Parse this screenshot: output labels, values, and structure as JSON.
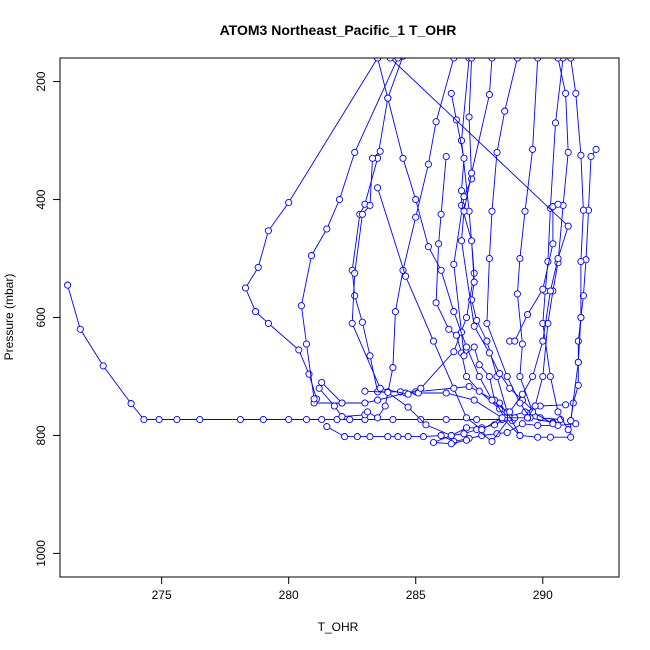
{
  "chart_data": {
    "type": "scatter",
    "title": "ATOM3 Northeast_Pacific_1 T_OHR",
    "xlabel": "T_OHR",
    "ylabel": "Pressure (mbar)",
    "xlim": [
      271,
      293
    ],
    "ylim": [
      1040,
      160
    ],
    "y_reversed": true,
    "x_ticks": [
      275,
      280,
      285,
      290
    ],
    "y_ticks": [
      200,
      400,
      600,
      800,
      1000
    ],
    "color": "#0000ff",
    "marker": "open-circle",
    "connected": true,
    "series": [
      {
        "values": [
          [
            271.3,
            545
          ],
          [
            271.8,
            620
          ],
          [
            272.7,
            682
          ],
          [
            273.8,
            746
          ],
          [
            274.3,
            773
          ],
          [
            274.9,
            773
          ],
          [
            275.6,
            773
          ],
          [
            276.5,
            773
          ],
          [
            278.1,
            773
          ],
          [
            279.0,
            773
          ],
          [
            280.0,
            773
          ],
          [
            280.7,
            773
          ],
          [
            281.3,
            773
          ],
          [
            281.9,
            773
          ],
          [
            282.4,
            773
          ],
          [
            283.0,
            773
          ],
          [
            284.1,
            773
          ],
          [
            285.2,
            773
          ],
          [
            286.2,
            773
          ],
          [
            287.4,
            773
          ],
          [
            288.4,
            773
          ]
        ]
      },
      {
        "values": [
          [
            288.8,
            775
          ],
          [
            288.3,
            745
          ],
          [
            287.1,
            717
          ],
          [
            285.0,
            726
          ],
          [
            284.4,
            726
          ],
          [
            283.9,
            726
          ],
          [
            283.5,
            726
          ],
          [
            283.2,
            665
          ],
          [
            282.9,
            608
          ],
          [
            282.6,
            563
          ],
          [
            282.5,
            520
          ],
          [
            282.8,
            425
          ],
          [
            283.0,
            408
          ],
          [
            283.5,
            330
          ],
          [
            283.9,
            228
          ],
          [
            284.5,
            157
          ]
        ]
      },
      {
        "values": [
          [
            281.1,
            738
          ],
          [
            280.8,
            696
          ],
          [
            280.4,
            655
          ],
          [
            279.2,
            610
          ],
          [
            278.7,
            590
          ],
          [
            278.3,
            550
          ],
          [
            278.8,
            515
          ],
          [
            279.2,
            453
          ],
          [
            280.0,
            405
          ],
          [
            283.5,
            160
          ]
        ]
      },
      {
        "values": [
          [
            281.0,
            745
          ],
          [
            282.1,
            745
          ],
          [
            283.0,
            745
          ],
          [
            283.5,
            740
          ],
          [
            284.6,
            728
          ],
          [
            285.1,
            728
          ],
          [
            286.2,
            728
          ],
          [
            287.3,
            740
          ],
          [
            288.4,
            770
          ],
          [
            289.1,
            800
          ],
          [
            289.8,
            803
          ],
          [
            290.3,
            803
          ],
          [
            291.1,
            803
          ],
          [
            291.1,
            775
          ],
          [
            291.2,
            745
          ],
          [
            291.4,
            715
          ],
          [
            291.4,
            676
          ],
          [
            291.4,
            640
          ],
          [
            291.5,
            600
          ],
          [
            291.6,
            563
          ],
          [
            291.7,
            502
          ],
          [
            291.8,
            418
          ],
          [
            291.9,
            327
          ],
          [
            292.1,
            315
          ]
        ]
      },
      {
        "values": [
          [
            281.0,
            738
          ],
          [
            280.7,
            645
          ],
          [
            280.5,
            580
          ],
          [
            280.9,
            495
          ],
          [
            281.5,
            450
          ],
          [
            282.0,
            400
          ],
          [
            282.6,
            320
          ],
          [
            284.3,
            160
          ]
        ]
      },
      {
        "values": [
          [
            282.1,
            745
          ],
          [
            281.3,
            710
          ],
          [
            281.2,
            720
          ],
          [
            281.8,
            750
          ],
          [
            282.1,
            768
          ],
          [
            283.0,
            765
          ],
          [
            283.1,
            760
          ],
          [
            283.5,
            770
          ],
          [
            283.8,
            750
          ],
          [
            284.1,
            685
          ],
          [
            284.2,
            590
          ],
          [
            284.5,
            520
          ],
          [
            285.0,
            430
          ],
          [
            285.5,
            340
          ],
          [
            285.8,
            268
          ],
          [
            286.5,
            160
          ]
        ]
      },
      {
        "values": [
          [
            281.5,
            785
          ],
          [
            282.2,
            802
          ],
          [
            282.7,
            802
          ],
          [
            283.2,
            802
          ],
          [
            283.9,
            802
          ],
          [
            284.3,
            802
          ],
          [
            284.7,
            802
          ],
          [
            285.3,
            802
          ],
          [
            286.0,
            800
          ],
          [
            286.5,
            810
          ],
          [
            287.1,
            805
          ],
          [
            287.6,
            800
          ],
          [
            288.2,
            797
          ],
          [
            288.6,
            795
          ],
          [
            289.2,
            780
          ],
          [
            289.8,
            783
          ],
          [
            290.6,
            783
          ],
          [
            291.3,
            780
          ]
        ]
      },
      {
        "values": [
          [
            283.6,
            318
          ],
          [
            283.3,
            330
          ],
          [
            283.2,
            410
          ],
          [
            282.9,
            425
          ],
          [
            282.6,
            525
          ],
          [
            282.5,
            610
          ],
          [
            283.6,
            720
          ],
          [
            284.7,
            730
          ],
          [
            285.2,
            720
          ],
          [
            286.5,
            658
          ],
          [
            287.0,
            600
          ],
          [
            287.3,
            525
          ],
          [
            287.1,
            420
          ],
          [
            286.8,
            300
          ],
          [
            287.1,
            160
          ]
        ]
      },
      {
        "values": [
          [
            283.0,
            725
          ],
          [
            283.9,
            727
          ],
          [
            284.7,
            752
          ],
          [
            285.4,
            782
          ],
          [
            286.4,
            800
          ],
          [
            287.0,
            787
          ],
          [
            287.6,
            787
          ],
          [
            288.1,
            782
          ],
          [
            288.7,
            768
          ],
          [
            289.3,
            760
          ],
          [
            289.9,
            750
          ],
          [
            290.9,
            748
          ]
        ]
      },
      {
        "values": [
          [
            286.2,
            327
          ],
          [
            286.0,
            425
          ],
          [
            285.9,
            475
          ],
          [
            285.8,
            575
          ],
          [
            286.3,
            620
          ],
          [
            286.6,
            630
          ],
          [
            286.8,
            660
          ],
          [
            287.0,
            700
          ],
          [
            287.5,
            725
          ],
          [
            288.3,
            755
          ],
          [
            288.7,
            770
          ],
          [
            288.0,
            810
          ],
          [
            287.4,
            790
          ],
          [
            286.9,
            797
          ],
          [
            286.4,
            800
          ],
          [
            285.7,
            812
          ],
          [
            286.4,
            814
          ],
          [
            287.0,
            808
          ]
        ]
      },
      {
        "values": [
          [
            286.4,
            220
          ],
          [
            286.6,
            265
          ],
          [
            286.9,
            330
          ],
          [
            286.8,
            385
          ],
          [
            286.8,
            410
          ],
          [
            287.2,
            470
          ],
          [
            287.3,
            540
          ],
          [
            287.2,
            570
          ],
          [
            287.4,
            605
          ],
          [
            287.8,
            640
          ],
          [
            288.2,
            700
          ],
          [
            288.6,
            760
          ],
          [
            289.1,
            800
          ]
        ]
      },
      {
        "values": [
          [
            287.2,
            160
          ],
          [
            287.1,
            260
          ],
          [
            287.2,
            365
          ],
          [
            286.9,
            395
          ],
          [
            286.5,
            510
          ],
          [
            286.8,
            625
          ],
          [
            286.9,
            665
          ],
          [
            287.3,
            650
          ],
          [
            287.5,
            680
          ],
          [
            287.9,
            700
          ],
          [
            288.1,
            740
          ],
          [
            288.5,
            770
          ]
        ]
      },
      {
        "values": [
          [
            288.0,
            160
          ],
          [
            287.9,
            222
          ],
          [
            287.2,
            355
          ],
          [
            286.9,
            420
          ],
          [
            286.8,
            470
          ],
          [
            287.3,
            615
          ],
          [
            287.9,
            660
          ],
          [
            288.3,
            695
          ],
          [
            288.7,
            720
          ],
          [
            289.2,
            740
          ],
          [
            289.9,
            770
          ],
          [
            290.7,
            773
          ]
        ]
      },
      {
        "values": [
          [
            289.0,
            160
          ],
          [
            288.5,
            250
          ],
          [
            288.2,
            320
          ],
          [
            288.0,
            420
          ],
          [
            287.9,
            500
          ],
          [
            287.8,
            610
          ],
          [
            288.6,
            700
          ],
          [
            289.1,
            745
          ],
          [
            289.5,
            770
          ],
          [
            290.4,
            778
          ]
        ]
      },
      {
        "values": [
          [
            289.8,
            160
          ],
          [
            289.6,
            315
          ],
          [
            289.3,
            420
          ],
          [
            289.1,
            500
          ],
          [
            289.0,
            560
          ],
          [
            289.2,
            645
          ],
          [
            289.1,
            700
          ],
          [
            289.6,
            760
          ],
          [
            290.4,
            780
          ]
        ]
      },
      {
        "values": [
          [
            290.8,
            160
          ],
          [
            290.5,
            270
          ],
          [
            290.3,
            415
          ],
          [
            290.2,
            505
          ],
          [
            290.1,
            555
          ],
          [
            290.0,
            610
          ],
          [
            290.3,
            700
          ],
          [
            290.6,
            760
          ],
          [
            291.0,
            790
          ]
        ]
      },
      {
        "values": [
          [
            291.1,
            160
          ],
          [
            291.3,
            220
          ],
          [
            291.5,
            325
          ],
          [
            291.6,
            418
          ],
          [
            291.5,
            505
          ],
          [
            291.5,
            600
          ],
          [
            291.4,
            676
          ],
          [
            291.1,
            775
          ]
        ]
      },
      {
        "values": [
          [
            290.6,
            160
          ],
          [
            290.9,
            220
          ],
          [
            291.0,
            320
          ],
          [
            290.8,
            410
          ],
          [
            290.6,
            507
          ],
          [
            290.4,
            555
          ],
          [
            290.2,
            610
          ],
          [
            290.0,
            700
          ],
          [
            289.7,
            750
          ],
          [
            289.4,
            770
          ]
        ]
      },
      {
        "values": [
          [
            283.5,
            160
          ],
          [
            283.9,
            228
          ],
          [
            284.5,
            330
          ],
          [
            285.0,
            400
          ],
          [
            285.5,
            480
          ],
          [
            286.0,
            520
          ],
          [
            286.5,
            590
          ],
          [
            287.0,
            650
          ],
          [
            287.5,
            700
          ],
          [
            288.0,
            740
          ],
          [
            288.9,
            770
          ]
        ]
      },
      {
        "values": [
          [
            284.0,
            160
          ],
          [
            291.0,
            445
          ],
          [
            290.6,
            500
          ],
          [
            290.3,
            555
          ],
          [
            290.0,
            640
          ],
          [
            289.6,
            700
          ],
          [
            289.2,
            730
          ],
          [
            288.7,
            760
          ]
        ]
      },
      {
        "values": [
          [
            283.5,
            380
          ],
          [
            284.6,
            530
          ],
          [
            285.7,
            640
          ],
          [
            286.5,
            720
          ],
          [
            287.0,
            770
          ],
          [
            287.6,
            790
          ],
          [
            288.4,
            770
          ],
          [
            289.4,
            770
          ]
        ]
      },
      {
        "values": [
          [
            288.7,
            640
          ],
          [
            288.9,
            640
          ],
          [
            289.4,
            595
          ],
          [
            290.0,
            552
          ],
          [
            290.4,
            475
          ],
          [
            290.4,
            412
          ],
          [
            290.6,
            408
          ]
        ]
      }
    ]
  }
}
